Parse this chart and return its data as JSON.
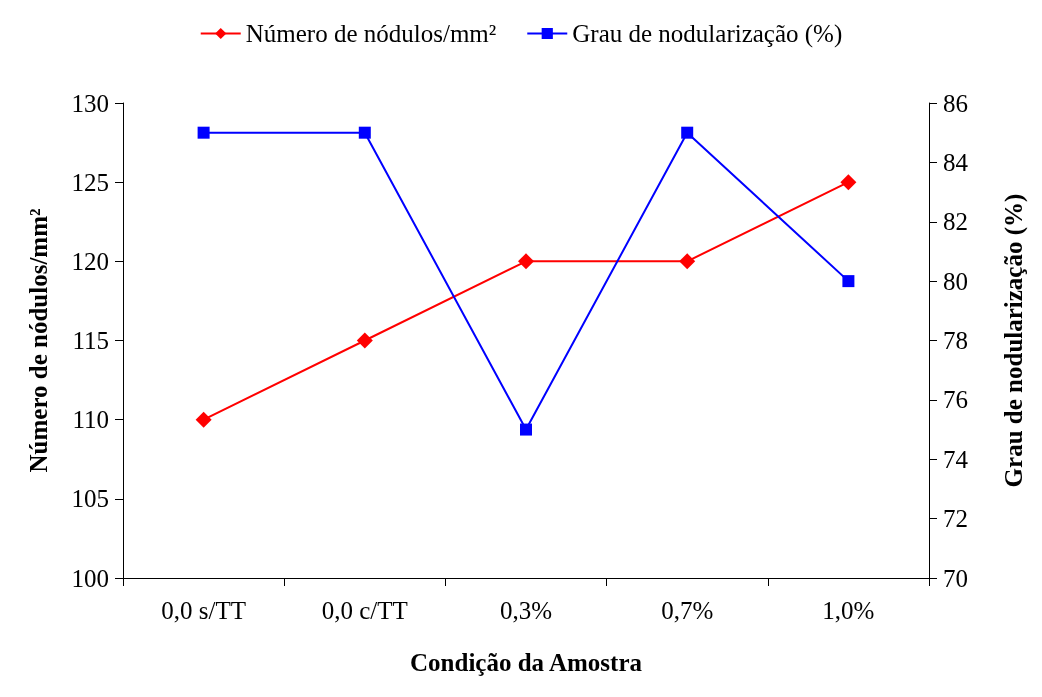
{
  "chart_data": {
    "type": "line",
    "xlabel": "Condição da Amostra",
    "ylabel": "Número de nódulos/mm²",
    "y2label": "Grau de nodularização (%)",
    "categories": [
      "0,0 s/TT",
      "0,0 c/TT",
      "0,3%",
      "0,7%",
      "1,0%"
    ],
    "series": [
      {
        "name": "Número de nódulos/mm²",
        "color": "#ff0000",
        "marker": "diamond",
        "values": [
          110,
          115,
          120,
          120,
          125
        ]
      },
      {
        "name": "Grau de nodularização (%)",
        "color": "#0000ff",
        "marker": "square",
        "axis": "y2",
        "values": [
          85,
          85,
          75,
          85,
          80
        ]
      }
    ],
    "ylim": [
      100,
      130
    ],
    "yticks": [
      100,
      105,
      110,
      115,
      120,
      125,
      130
    ],
    "y2lim": [
      70,
      86
    ],
    "y2ticks": [
      70,
      72,
      74,
      76,
      78,
      80,
      82,
      84,
      86
    ],
    "grid": false,
    "legend": "top",
    "line_style": "solid"
  }
}
